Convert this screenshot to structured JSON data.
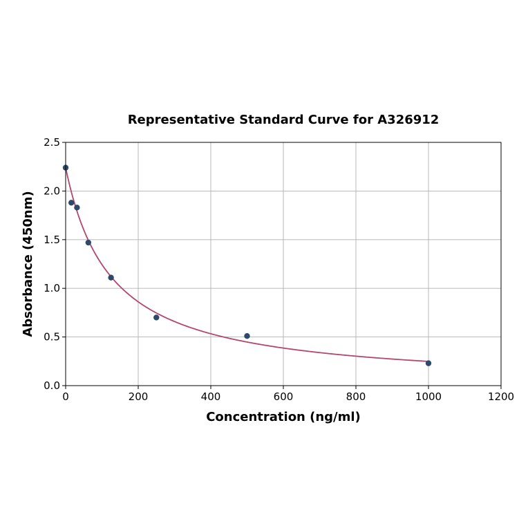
{
  "chart_data": {
    "type": "scatter",
    "title": "Representative Standard Curve for A326912",
    "xlabel": "Concentration (ng/ml)",
    "ylabel": "Absorbance (450nm)",
    "xlim": [
      0,
      1200
    ],
    "ylim": [
      0,
      2.5
    ],
    "xticks": [
      0,
      200,
      400,
      600,
      800,
      1000,
      1200
    ],
    "yticks": [
      0.0,
      0.5,
      1.0,
      1.5,
      2.0,
      2.5
    ],
    "xtick_labels": [
      "0",
      "200",
      "400",
      "600",
      "800",
      "1000",
      "1200"
    ],
    "ytick_labels": [
      "0.0",
      "0.5",
      "1.0",
      "1.5",
      "2.0",
      "2.5"
    ],
    "grid": true,
    "points": {
      "x": [
        0,
        15.6,
        31.25,
        62.5,
        125,
        250,
        500,
        1000
      ],
      "y": [
        2.24,
        1.88,
        1.83,
        1.47,
        1.11,
        0.7,
        0.51,
        0.23
      ]
    },
    "fit": {
      "model": "4PL",
      "a": 2.24,
      "b": 1.0,
      "c": 125,
      "d": 0.0,
      "x_range": [
        0,
        1000
      ]
    },
    "colors": {
      "point": "#2d4a6b",
      "curve": "#b5446e",
      "grid": "#b0b0b0"
    }
  }
}
